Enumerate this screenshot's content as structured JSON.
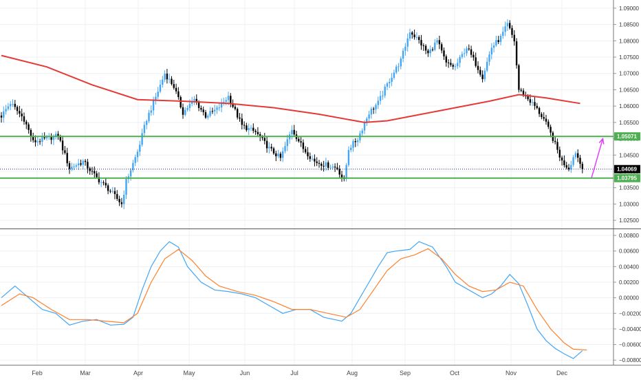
{
  "chart_data": [
    {
      "type": "candlestick",
      "title": "",
      "xlabel": "",
      "ylabel": "",
      "ylim": [
        1.0225,
        1.0925
      ],
      "grid": true,
      "x_month_ticks": [
        "Feb",
        "Mar",
        "Apr",
        "May",
        "Jun",
        "Jul",
        "Aug",
        "Sep",
        "Oct",
        "Nov",
        "Dec"
      ],
      "y_ticks": [
        "1.02500",
        "1.03000",
        "1.03500",
        "1.04000",
        "1.04500",
        "1.05000",
        "1.05500",
        "1.06000",
        "1.06500",
        "1.07000",
        "1.07500",
        "1.08000",
        "1.08500",
        "1.09000"
      ],
      "colors": {
        "up": "#42a5f5",
        "down": "#000000",
        "moving_average": "#e53935",
        "levels": "#4caf50",
        "arrow": "#e040fb"
      },
      "key_points_close": [
        {
          "day": 0,
          "close": 1.057
        },
        {
          "day": 4,
          "close": 1.061
        },
        {
          "day": 10,
          "close": 1.056
        },
        {
          "day": 14,
          "close": 1.049
        },
        {
          "day": 20,
          "close": 1.05
        },
        {
          "day": 25,
          "close": 1.051
        },
        {
          "day": 30,
          "close": 1.041
        },
        {
          "day": 36,
          "close": 1.043
        },
        {
          "day": 42,
          "close": 1.038
        },
        {
          "day": 48,
          "close": 1.034
        },
        {
          "day": 53,
          "close": 1.03
        },
        {
          "day": 55,
          "close": 1.037
        },
        {
          "day": 60,
          "close": 1.046
        },
        {
          "day": 64,
          "close": 1.056
        },
        {
          "day": 67,
          "close": 1.061
        },
        {
          "day": 72,
          "close": 1.07
        },
        {
          "day": 76,
          "close": 1.066
        },
        {
          "day": 80,
          "close": 1.058
        },
        {
          "day": 85,
          "close": 1.062
        },
        {
          "day": 90,
          "close": 1.057
        },
        {
          "day": 95,
          "close": 1.059
        },
        {
          "day": 100,
          "close": 1.063
        },
        {
          "day": 106,
          "close": 1.054
        },
        {
          "day": 112,
          "close": 1.052
        },
        {
          "day": 118,
          "close": 1.047
        },
        {
          "day": 123,
          "close": 1.044
        },
        {
          "day": 128,
          "close": 1.053
        },
        {
          "day": 133,
          "close": 1.047
        },
        {
          "day": 138,
          "close": 1.043
        },
        {
          "day": 143,
          "close": 1.042
        },
        {
          "day": 148,
          "close": 1.041
        },
        {
          "day": 151,
          "close": 1.037
        },
        {
          "day": 153,
          "close": 1.047
        },
        {
          "day": 157,
          "close": 1.05
        },
        {
          "day": 162,
          "close": 1.058
        },
        {
          "day": 166,
          "close": 1.061
        },
        {
          "day": 171,
          "close": 1.068
        },
        {
          "day": 176,
          "close": 1.074
        },
        {
          "day": 180,
          "close": 1.083
        },
        {
          "day": 184,
          "close": 1.08
        },
        {
          "day": 188,
          "close": 1.076
        },
        {
          "day": 192,
          "close": 1.08
        },
        {
          "day": 196,
          "close": 1.073
        },
        {
          "day": 200,
          "close": 1.072
        },
        {
          "day": 205,
          "close": 1.078
        },
        {
          "day": 209,
          "close": 1.073
        },
        {
          "day": 212,
          "close": 1.069
        },
        {
          "day": 216,
          "close": 1.078
        },
        {
          "day": 220,
          "close": 1.081
        },
        {
          "day": 223,
          "close": 1.085
        },
        {
          "day": 226,
          "close": 1.08
        },
        {
          "day": 228,
          "close": 1.065
        },
        {
          "day": 231,
          "close": 1.063
        },
        {
          "day": 235,
          "close": 1.06
        },
        {
          "day": 239,
          "close": 1.056
        },
        {
          "day": 243,
          "close": 1.05
        },
        {
          "day": 247,
          "close": 1.043
        },
        {
          "day": 250,
          "close": 1.041
        },
        {
          "day": 253,
          "close": 1.046
        },
        {
          "day": 256,
          "close": 1.0407
        }
      ],
      "moving_average_points": [
        {
          "day": 0,
          "value": 1.0755
        },
        {
          "day": 20,
          "value": 1.072
        },
        {
          "day": 40,
          "value": 1.0665
        },
        {
          "day": 60,
          "value": 1.062
        },
        {
          "day": 80,
          "value": 1.0615
        },
        {
          "day": 100,
          "value": 1.0608
        },
        {
          "day": 120,
          "value": 1.0595
        },
        {
          "day": 140,
          "value": 1.0575
        },
        {
          "day": 160,
          "value": 1.055
        },
        {
          "day": 170,
          "value": 1.0555
        },
        {
          "day": 185,
          "value": 1.0575
        },
        {
          "day": 200,
          "value": 1.0595
        },
        {
          "day": 215,
          "value": 1.0615
        },
        {
          "day": 228,
          "value": 1.0635
        },
        {
          "day": 240,
          "value": 1.0625
        },
        {
          "day": 255,
          "value": 1.0608
        }
      ],
      "horizontal_levels": [
        {
          "value": 1.05071,
          "label": "1.05071"
        },
        {
          "value": 1.03795,
          "label": "1.03795"
        }
      ],
      "current_price": {
        "value": 1.04069,
        "label": "1.04069"
      },
      "arrow": {
        "from_day": 260,
        "from_value": 1.038,
        "to_day": 265,
        "to_value": 1.05
      }
    },
    {
      "type": "line",
      "title": "",
      "xlabel": "",
      "ylabel": "",
      "ylim": [
        -0.0086,
        0.0088
      ],
      "grid": true,
      "y_ticks": [
        "0.00800",
        "0.00600",
        "0.00400",
        "0.00200",
        "0.00000",
        "−0.00200",
        "−0.00400",
        "−0.00600",
        "−0.00800"
      ],
      "series": [
        {
          "color": "#42a5f5",
          "points": [
            {
              "day": 0,
              "value": 0.0
            },
            {
              "day": 6,
              "value": 0.0015
            },
            {
              "day": 12,
              "value": 0.0
            },
            {
              "day": 18,
              "value": -0.0015
            },
            {
              "day": 24,
              "value": -0.002
            },
            {
              "day": 30,
              "value": -0.0035
            },
            {
              "day": 36,
              "value": -0.003
            },
            {
              "day": 42,
              "value": -0.0028
            },
            {
              "day": 48,
              "value": -0.0035
            },
            {
              "day": 54,
              "value": -0.0034
            },
            {
              "day": 58,
              "value": -0.0025
            },
            {
              "day": 62,
              "value": 0.001
            },
            {
              "day": 66,
              "value": 0.004
            },
            {
              "day": 70,
              "value": 0.006
            },
            {
              "day": 74,
              "value": 0.0072
            },
            {
              "day": 78,
              "value": 0.0065
            },
            {
              "day": 82,
              "value": 0.004
            },
            {
              "day": 88,
              "value": 0.002
            },
            {
              "day": 94,
              "value": 0.001
            },
            {
              "day": 100,
              "value": 0.0008
            },
            {
              "day": 106,
              "value": 0.0005
            },
            {
              "day": 112,
              "value": 0.0
            },
            {
              "day": 118,
              "value": -0.001
            },
            {
              "day": 124,
              "value": -0.002
            },
            {
              "day": 130,
              "value": -0.0015
            },
            {
              "day": 136,
              "value": -0.0015
            },
            {
              "day": 142,
              "value": -0.0025
            },
            {
              "day": 150,
              "value": -0.003
            },
            {
              "day": 154,
              "value": -0.002
            },
            {
              "day": 158,
              "value": 0.0
            },
            {
              "day": 162,
              "value": 0.002
            },
            {
              "day": 166,
              "value": 0.004
            },
            {
              "day": 170,
              "value": 0.0058
            },
            {
              "day": 174,
              "value": 0.006
            },
            {
              "day": 180,
              "value": 0.0062
            },
            {
              "day": 184,
              "value": 0.0072
            },
            {
              "day": 190,
              "value": 0.0065
            },
            {
              "day": 196,
              "value": 0.004
            },
            {
              "day": 200,
              "value": 0.002
            },
            {
              "day": 206,
              "value": 0.001
            },
            {
              "day": 212,
              "value": 0.0
            },
            {
              "day": 216,
              "value": 0.0005
            },
            {
              "day": 220,
              "value": 0.0015
            },
            {
              "day": 224,
              "value": 0.003
            },
            {
              "day": 228,
              "value": 0.0018
            },
            {
              "day": 232,
              "value": -0.001
            },
            {
              "day": 236,
              "value": -0.004
            },
            {
              "day": 240,
              "value": -0.0055
            },
            {
              "day": 244,
              "value": -0.0065
            },
            {
              "day": 248,
              "value": -0.0072
            },
            {
              "day": 252,
              "value": -0.0078
            },
            {
              "day": 256,
              "value": -0.0068
            }
          ]
        },
        {
          "color": "#ff7f2a",
          "points": [
            {
              "day": 0,
              "value": -0.001
            },
            {
              "day": 8,
              "value": 0.0005
            },
            {
              "day": 14,
              "value": 0.0
            },
            {
              "day": 22,
              "value": -0.0015
            },
            {
              "day": 30,
              "value": -0.0028
            },
            {
              "day": 38,
              "value": -0.0028
            },
            {
              "day": 46,
              "value": -0.003
            },
            {
              "day": 54,
              "value": -0.0032
            },
            {
              "day": 60,
              "value": -0.002
            },
            {
              "day": 66,
              "value": 0.002
            },
            {
              "day": 72,
              "value": 0.005
            },
            {
              "day": 78,
              "value": 0.0062
            },
            {
              "day": 84,
              "value": 0.0048
            },
            {
              "day": 90,
              "value": 0.0028
            },
            {
              "day": 96,
              "value": 0.0015
            },
            {
              "day": 104,
              "value": 0.0008
            },
            {
              "day": 112,
              "value": 0.0003
            },
            {
              "day": 120,
              "value": -0.0005
            },
            {
              "day": 128,
              "value": -0.0015
            },
            {
              "day": 136,
              "value": -0.0015
            },
            {
              "day": 144,
              "value": -0.002
            },
            {
              "day": 152,
              "value": -0.0025
            },
            {
              "day": 158,
              "value": -0.0015
            },
            {
              "day": 164,
              "value": 0.001
            },
            {
              "day": 170,
              "value": 0.0035
            },
            {
              "day": 176,
              "value": 0.005
            },
            {
              "day": 182,
              "value": 0.0055
            },
            {
              "day": 188,
              "value": 0.0063
            },
            {
              "day": 194,
              "value": 0.005
            },
            {
              "day": 200,
              "value": 0.003
            },
            {
              "day": 206,
              "value": 0.0015
            },
            {
              "day": 212,
              "value": 0.0008
            },
            {
              "day": 218,
              "value": 0.001
            },
            {
              "day": 224,
              "value": 0.002
            },
            {
              "day": 230,
              "value": 0.0015
            },
            {
              "day": 236,
              "value": -0.0015
            },
            {
              "day": 242,
              "value": -0.004
            },
            {
              "day": 248,
              "value": -0.0058
            },
            {
              "day": 252,
              "value": -0.0066
            },
            {
              "day": 258,
              "value": -0.0067
            }
          ]
        }
      ]
    }
  ]
}
